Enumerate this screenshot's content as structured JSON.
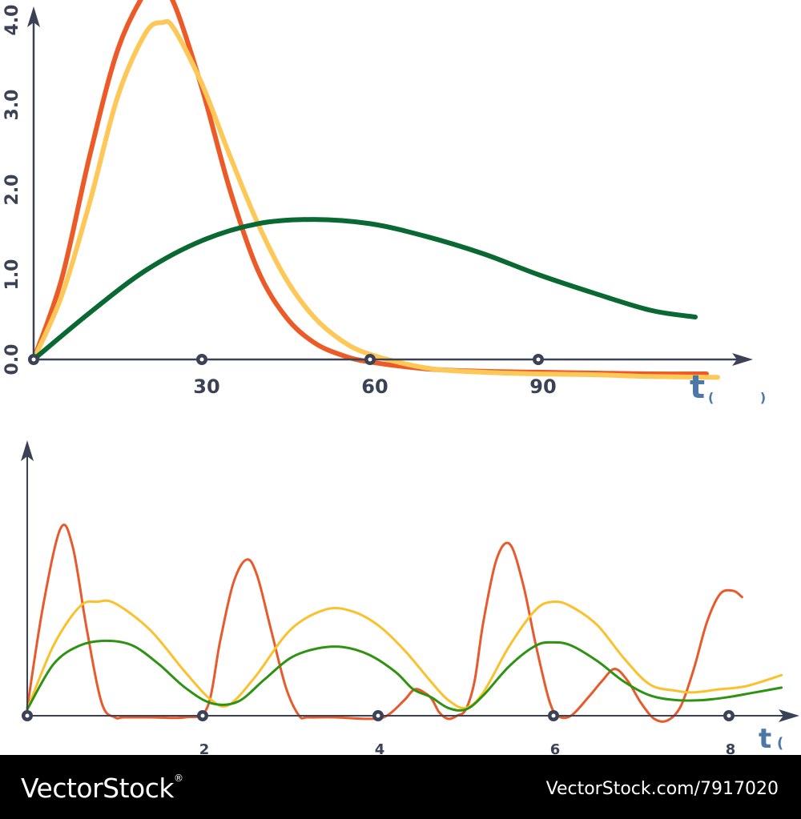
{
  "chart_data": [
    {
      "type": "line",
      "xlabel": "t",
      "xlabel_paren": "( )",
      "x_ticks": [
        "30",
        "60",
        "90"
      ],
      "y_ticks": [
        "0.0",
        "1.0",
        "2.0",
        "3.0",
        "4.0"
      ],
      "xlim": [
        0,
        120
      ],
      "ylim": [
        0,
        4
      ],
      "grid": false,
      "legend": "none",
      "series": [
        {
          "color": "#eb5a27",
          "x": [
            0,
            5,
            10,
            15,
            20,
            22,
            25,
            30,
            35,
            40,
            45,
            50,
            55,
            60,
            70,
            80,
            90,
            100,
            110,
            120
          ],
          "y": [
            0,
            0.95,
            2.4,
            3.65,
            4.34,
            4.4,
            4.2,
            3.2,
            2.0,
            1.05,
            0.5,
            0.2,
            0.05,
            -0.03,
            -0.11,
            -0.14,
            -0.15,
            -0.16,
            -0.17,
            -0.17
          ]
        },
        {
          "color": "#fec859",
          "x": [
            0,
            5,
            10,
            15,
            20,
            23,
            25,
            30,
            35,
            40,
            45,
            50,
            55,
            60,
            70,
            80,
            90,
            100,
            110,
            122
          ],
          "y": [
            0,
            0.75,
            1.85,
            3.1,
            3.85,
            3.97,
            3.9,
            3.25,
            2.4,
            1.6,
            0.95,
            0.5,
            0.22,
            0.06,
            -0.1,
            -0.15,
            -0.17,
            -0.18,
            -0.2,
            -0.21
          ]
        },
        {
          "color": "#0a6832",
          "x": [
            0,
            10,
            20,
            30,
            40,
            50,
            60,
            70,
            80,
            90,
            100,
            110,
            118
          ],
          "y": [
            0,
            0.55,
            1.05,
            1.4,
            1.6,
            1.65,
            1.6,
            1.45,
            1.25,
            1.0,
            0.78,
            0.58,
            0.5
          ]
        }
      ]
    },
    {
      "type": "line",
      "xlabel": "t",
      "xlabel_paren": "( )",
      "x_ticks": [
        "2",
        "4",
        "6",
        "8"
      ],
      "xlim": [
        0,
        8.6
      ],
      "ylim": [
        0,
        1.2
      ],
      "grid": false,
      "legend": "none",
      "series": [
        {
          "color": "#e85a2c",
          "x": [
            0,
            0.18,
            0.38,
            0.52,
            0.68,
            0.85,
            1.0,
            1.1,
            1.4,
            1.8,
            2.05,
            2.2,
            2.35,
            2.5,
            2.62,
            2.78,
            2.95,
            3.1,
            3.2,
            3.5,
            3.9,
            4.1,
            4.3,
            4.42,
            4.55,
            4.62,
            4.7,
            4.8,
            4.9,
            5.0,
            5.1,
            5.2,
            5.35,
            5.5,
            5.65,
            5.8,
            5.95,
            6.05,
            6.2,
            6.4,
            6.55,
            6.7,
            6.85,
            7.0,
            7.15,
            7.3,
            7.45,
            7.6,
            7.75,
            7.9,
            8.05,
            8.15
          ],
          "y": [
            0.05,
            0.7,
            1.2,
            1.08,
            0.55,
            0.08,
            -0.01,
            -0.01,
            -0.01,
            -0.01,
            0.05,
            0.48,
            0.85,
            1.0,
            0.9,
            0.55,
            0.18,
            0.0,
            -0.01,
            -0.01,
            -0.02,
            0.0,
            0.1,
            0.17,
            0.14,
            0.1,
            0.02,
            -0.02,
            0.0,
            0.04,
            0.22,
            0.6,
            1.0,
            1.1,
            0.85,
            0.45,
            0.1,
            0.0,
            0.0,
            0.12,
            0.22,
            0.3,
            0.22,
            0.08,
            -0.02,
            -0.03,
            0.06,
            0.3,
            0.6,
            0.78,
            0.8,
            0.76
          ]
        },
        {
          "color": "#fbc12d",
          "x": [
            0,
            0.3,
            0.6,
            0.8,
            1.0,
            1.4,
            1.8,
            2.1,
            2.3,
            2.6,
            3.0,
            3.4,
            3.7,
            4.0,
            4.3,
            4.6,
            4.8,
            5.0,
            5.2,
            5.5,
            5.8,
            6.0,
            6.2,
            6.5,
            6.8,
            7.1,
            7.4,
            7.6,
            7.9,
            8.2,
            8.6
          ],
          "y": [
            0.04,
            0.45,
            0.7,
            0.73,
            0.72,
            0.55,
            0.28,
            0.1,
            0.07,
            0.25,
            0.55,
            0.68,
            0.67,
            0.58,
            0.42,
            0.22,
            0.1,
            0.05,
            0.15,
            0.45,
            0.68,
            0.73,
            0.7,
            0.58,
            0.37,
            0.2,
            0.16,
            0.15,
            0.17,
            0.19,
            0.26
          ]
        },
        {
          "color": "#2e9212",
          "x": [
            0,
            0.3,
            0.6,
            0.9,
            1.2,
            1.5,
            1.8,
            2.1,
            2.4,
            2.7,
            3.0,
            3.3,
            3.6,
            3.9,
            4.2,
            4.4,
            4.6,
            4.8,
            5.0,
            5.2,
            5.5,
            5.8,
            6.0,
            6.2,
            6.5,
            6.8,
            7.1,
            7.4,
            7.7,
            8.0,
            8.3,
            8.6
          ],
          "y": [
            0.04,
            0.33,
            0.45,
            0.48,
            0.45,
            0.33,
            0.18,
            0.08,
            0.09,
            0.23,
            0.37,
            0.43,
            0.44,
            0.39,
            0.28,
            0.17,
            0.12,
            0.05,
            0.04,
            0.13,
            0.32,
            0.45,
            0.47,
            0.45,
            0.35,
            0.22,
            0.13,
            0.1,
            0.1,
            0.12,
            0.15,
            0.18
          ]
        }
      ]
    }
  ],
  "footer": {
    "brand": "VectorStock",
    "brand_mark": "®",
    "url": "VectorStock.com/7917020"
  }
}
